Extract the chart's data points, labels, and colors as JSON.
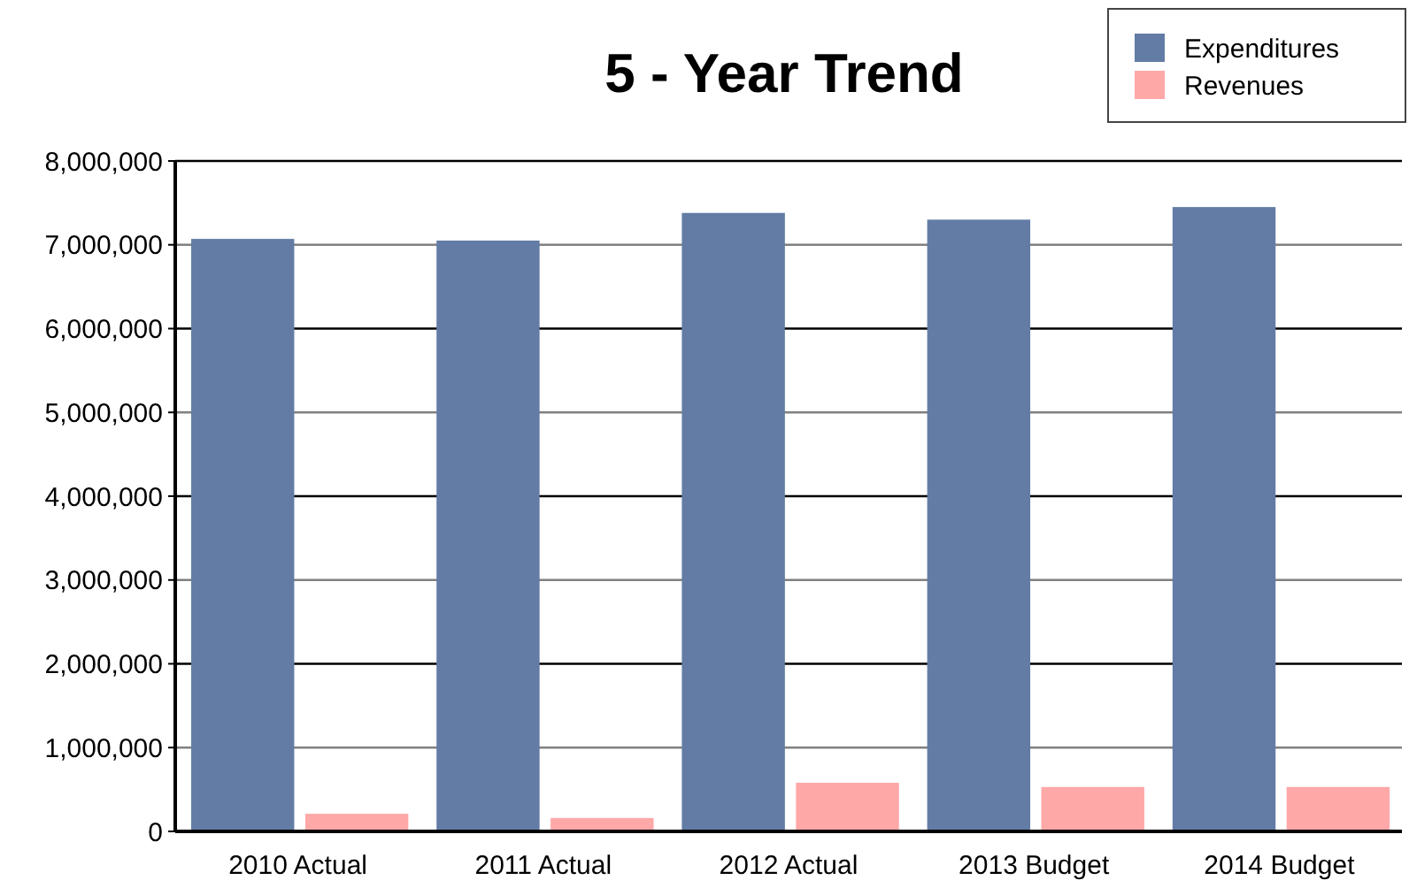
{
  "chart_data": {
    "type": "bar",
    "title": "5 - Year Trend",
    "categories": [
      "2010 Actual",
      "2011 Actual",
      "2012 Actual",
      "2013 Budget",
      "2014 Budget"
    ],
    "series": [
      {
        "name": "Expenditures",
        "color": "#627ca5",
        "values": [
          7070000,
          7050000,
          7380000,
          7300000,
          7450000
        ]
      },
      {
        "name": "Revenues",
        "color": "#ffa8a8",
        "values": [
          210000,
          160000,
          580000,
          530000,
          530000
        ]
      }
    ],
    "ylim": [
      0,
      8000000
    ],
    "yticks": [
      {
        "value": 0,
        "label": "0"
      },
      {
        "value": 1000000,
        "label": "1,000,000"
      },
      {
        "value": 2000000,
        "label": "2,000,000"
      },
      {
        "value": 3000000,
        "label": "3,000,000"
      },
      {
        "value": 4000000,
        "label": "4,000,000"
      },
      {
        "value": 5000000,
        "label": "5,000,000"
      },
      {
        "value": 6000000,
        "label": "6,000,000"
      },
      {
        "value": 7000000,
        "label": "7,000,000"
      },
      {
        "value": 8000000,
        "label": "8,000,000"
      }
    ],
    "grid": "y",
    "legend": "top right"
  }
}
